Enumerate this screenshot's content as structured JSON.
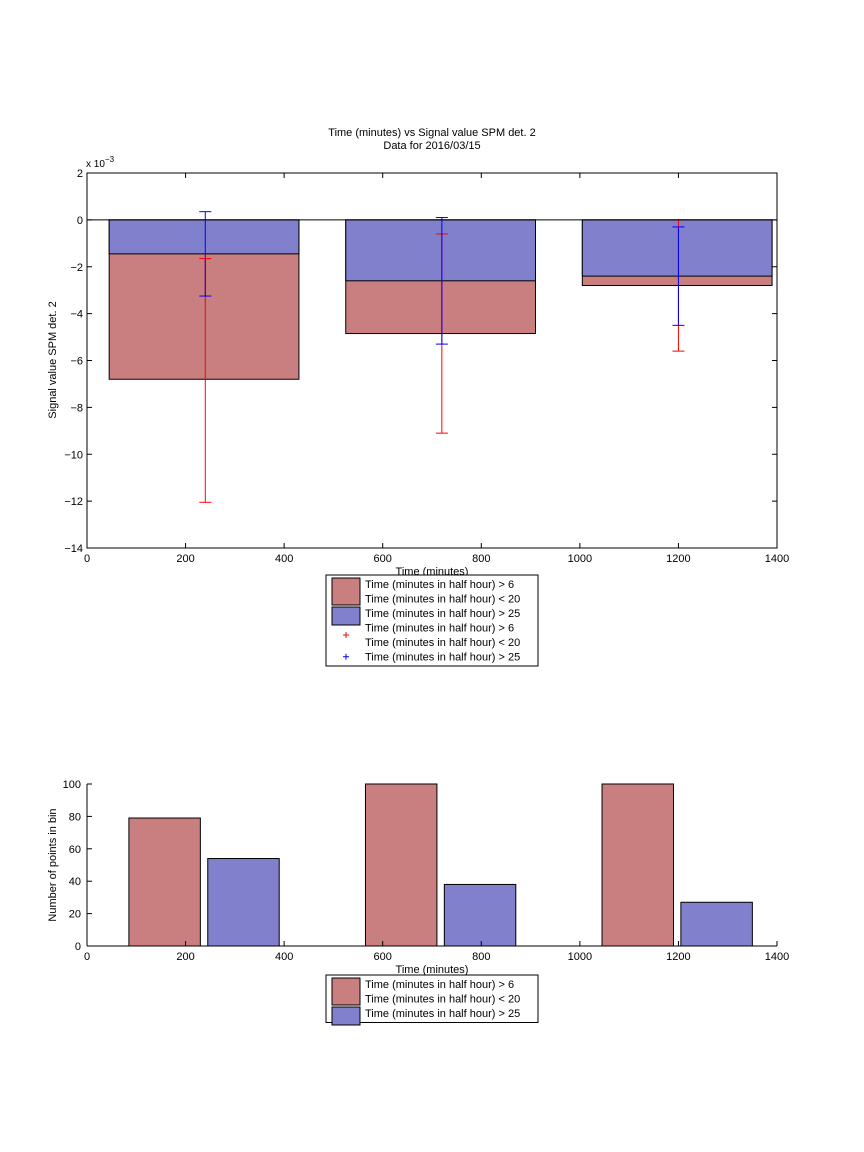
{
  "chart_data": [
    {
      "type": "bar",
      "title": "Time (minutes) vs Signal value SPM det. 2",
      "subtitle": "Data for 2016/03/15",
      "xlabel": "Time (minutes)",
      "ylabel": "Signal value SPM det. 2",
      "y_multiplier_label": "x 10",
      "y_multiplier_exp": "−3",
      "xlim": [
        0,
        1400
      ],
      "ylim": [
        -14,
        2
      ],
      "xticks": [
        0,
        200,
        400,
        600,
        800,
        1000,
        1200,
        1400
      ],
      "yticks": [
        2,
        0,
        -2,
        -4,
        -6,
        -8,
        -10,
        -12,
        -14
      ],
      "xtick_labels": [
        "0",
        "200",
        "400",
        "600",
        "800",
        "1000",
        "1200",
        "1400"
      ],
      "ytick_labels": [
        "2",
        "0",
        "−2",
        "−4",
        "−6",
        "−8",
        "−10",
        "−12",
        "−14"
      ],
      "bar_groups": [
        {
          "x_start": 45,
          "x_end": 430
        },
        {
          "x_start": 525,
          "x_end": 910
        },
        {
          "x_start": 1005,
          "x_end": 1390
        }
      ],
      "series": [
        {
          "name": "Time (minutes in half hour) > 6\nTime (minutes in half hour) < 20",
          "color": "#c97f7f",
          "values": [
            -6.8,
            -4.85,
            -2.8
          ]
        },
        {
          "name": "Time (minutes in half hour) > 25",
          "color": "#8080cc",
          "values": [
            -1.45,
            -2.6,
            -2.4
          ]
        }
      ],
      "errorbars": [
        {
          "color": "#ff0000",
          "x": [
            240,
            720,
            1200
          ],
          "low": [
            -12.05,
            -9.1,
            -5.6
          ],
          "high": [
            -1.65,
            -0.6,
            0.0
          ]
        },
        {
          "color": "#0000ff",
          "x": [
            240,
            720,
            1200
          ],
          "low": [
            -3.25,
            -5.3,
            -4.5
          ],
          "high": [
            0.35,
            0.1,
            -0.3
          ]
        }
      ],
      "legend_placement": "below",
      "legend_entries": [
        {
          "kind": "patch",
          "color": "#c97f7f",
          "lines": [
            "Time (minutes in half hour) > 6",
            "Time (minutes in half hour) < 20"
          ]
        },
        {
          "kind": "patch",
          "color": "#8080cc",
          "lines": [
            "Time (minutes in half hour) > 25"
          ]
        },
        {
          "kind": "marker",
          "color": "#ff0000",
          "lines": [
            "Time (minutes in half hour) > 6",
            "Time (minutes in half hour) < 20"
          ]
        },
        {
          "kind": "marker",
          "color": "#0000ff",
          "lines": [
            "Time (minutes in half hour) > 25"
          ]
        }
      ]
    },
    {
      "type": "bar",
      "title": "",
      "xlabel": "Time (minutes)",
      "ylabel": "Number of points in bin",
      "xlim": [
        0,
        1400
      ],
      "ylim": [
        0,
        100
      ],
      "xticks": [
        0,
        200,
        400,
        600,
        800,
        1000,
        1200,
        1400
      ],
      "yticks": [
        0,
        20,
        40,
        60,
        80,
        100
      ],
      "xtick_labels": [
        "0",
        "200",
        "400",
        "600",
        "800",
        "1000",
        "1200",
        "1400"
      ],
      "ytick_labels": [
        "0",
        "20",
        "40",
        "60",
        "80",
        "100"
      ],
      "series": [
        {
          "name": "Time (minutes in half hour) > 6\nTime (minutes in half hour) < 20",
          "color": "#c97f7f",
          "x_start": [
            85,
            565,
            1045
          ],
          "x_end": [
            230,
            710,
            1190
          ],
          "values": [
            79,
            100,
            100
          ]
        },
        {
          "name": "Time (minutes in half hour) > 25",
          "color": "#8080cc",
          "x_start": [
            245,
            725,
            1205
          ],
          "x_end": [
            390,
            870,
            1350
          ],
          "values": [
            54,
            38,
            27
          ]
        }
      ],
      "legend_placement": "below",
      "legend_entries": [
        {
          "kind": "patch",
          "color": "#c97f7f",
          "lines": [
            "Time (minutes in half hour) > 6",
            "Time (minutes in half hour) < 20"
          ]
        },
        {
          "kind": "patch",
          "color": "#8080cc",
          "lines": [
            "Time (minutes in half hour) > 25"
          ]
        }
      ]
    }
  ]
}
